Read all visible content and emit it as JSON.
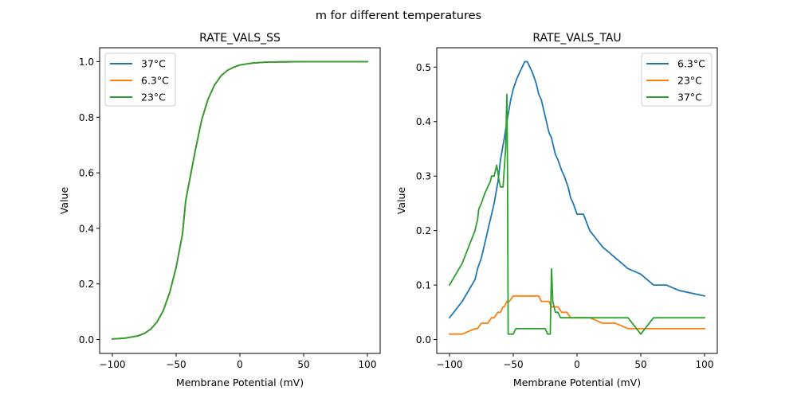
{
  "figure": {
    "suptitle": "m for different temperatures"
  },
  "chart_data": [
    {
      "type": "line",
      "title": "RATE_VALS_SS",
      "xlabel": "Membrane Potential (mV)",
      "ylabel": "Value",
      "xlim": [
        -110,
        110
      ],
      "ylim": [
        -0.05,
        1.05
      ],
      "xticks": [
        -100,
        -50,
        0,
        50,
        100
      ],
      "xtick_labels": [
        "−100",
        "−50",
        "0",
        "50",
        "100"
      ],
      "yticks": [
        0.0,
        0.2,
        0.4,
        0.6,
        0.8,
        1.0
      ],
      "ytick_labels": [
        "0.0",
        "0.2",
        "0.4",
        "0.6",
        "0.8",
        "1.0"
      ],
      "grid": false,
      "legend_position": "top-left",
      "series": [
        {
          "name": "37°C",
          "color": "#1f77b4",
          "x": [
            -100,
            -90,
            -80,
            -75,
            -70,
            -65,
            -60,
            -55,
            -50,
            -45,
            -42.5,
            -40,
            -35,
            -30,
            -25,
            -20,
            -15,
            -10,
            -5,
            0,
            10,
            20,
            30,
            50,
            75,
            100
          ],
          "y": [
            0.002,
            0.005,
            0.013,
            0.022,
            0.037,
            0.063,
            0.105,
            0.17,
            0.26,
            0.38,
            0.5,
            0.56,
            0.68,
            0.79,
            0.865,
            0.915,
            0.948,
            0.968,
            0.98,
            0.988,
            0.995,
            0.998,
            0.999,
            1.0,
            1.0,
            1.0
          ]
        },
        {
          "name": "6.3°C",
          "color": "#ff7f0e",
          "x": [
            -100,
            -90,
            -80,
            -75,
            -70,
            -65,
            -60,
            -55,
            -50,
            -45,
            -42.5,
            -40,
            -35,
            -30,
            -25,
            -20,
            -15,
            -10,
            -5,
            0,
            10,
            20,
            30,
            50,
            75,
            100
          ],
          "y": [
            0.002,
            0.005,
            0.013,
            0.022,
            0.037,
            0.063,
            0.105,
            0.17,
            0.26,
            0.38,
            0.5,
            0.56,
            0.68,
            0.79,
            0.865,
            0.915,
            0.948,
            0.968,
            0.98,
            0.988,
            0.995,
            0.998,
            0.999,
            1.0,
            1.0,
            1.0
          ]
        },
        {
          "name": "23°C",
          "color": "#2ca02c",
          "x": [
            -100,
            -90,
            -80,
            -75,
            -70,
            -65,
            -60,
            -55,
            -50,
            -45,
            -42.5,
            -40,
            -35,
            -30,
            -25,
            -20,
            -15,
            -10,
            -5,
            0,
            10,
            20,
            30,
            50,
            75,
            100
          ],
          "y": [
            0.002,
            0.005,
            0.013,
            0.022,
            0.037,
            0.063,
            0.105,
            0.17,
            0.26,
            0.38,
            0.5,
            0.56,
            0.68,
            0.79,
            0.865,
            0.915,
            0.948,
            0.968,
            0.98,
            0.988,
            0.995,
            0.998,
            0.999,
            1.0,
            1.0,
            1.0
          ]
        }
      ]
    },
    {
      "type": "line",
      "title": "RATE_VALS_TAU",
      "xlabel": "Membrane Potential (mV)",
      "ylabel": "Value",
      "xlim": [
        -110,
        110
      ],
      "ylim": [
        -0.0255,
        0.5355
      ],
      "xticks": [
        -100,
        -50,
        0,
        50,
        100
      ],
      "xtick_labels": [
        "−100",
        "−50",
        "0",
        "50",
        "100"
      ],
      "yticks": [
        0.0,
        0.1,
        0.2,
        0.3,
        0.4,
        0.5
      ],
      "ytick_labels": [
        "0.0",
        "0.1",
        "0.2",
        "0.3",
        "0.4",
        "0.5"
      ],
      "grid": false,
      "legend_position": "top-right",
      "series": [
        {
          "name": "6.3°C",
          "color": "#1f77b4",
          "x": [
            -100,
            -90,
            -85,
            -80,
            -78,
            -75,
            -70,
            -68,
            -65,
            -62,
            -60,
            -57,
            -55,
            -52,
            -50,
            -47,
            -45,
            -41,
            -39,
            -35,
            -32,
            -30,
            -28,
            -25,
            -22,
            -20,
            -17,
            -15,
            -12,
            -10,
            -7,
            -5,
            -3,
            0,
            5,
            10,
            20,
            30,
            40,
            45,
            50,
            60,
            70,
            80,
            100
          ],
          "y": [
            0.04,
            0.07,
            0.09,
            0.11,
            0.13,
            0.15,
            0.2,
            0.22,
            0.25,
            0.29,
            0.33,
            0.37,
            0.4,
            0.44,
            0.46,
            0.48,
            0.49,
            0.51,
            0.51,
            0.49,
            0.47,
            0.45,
            0.44,
            0.41,
            0.38,
            0.37,
            0.34,
            0.33,
            0.31,
            0.3,
            0.28,
            0.26,
            0.25,
            0.23,
            0.23,
            0.2,
            0.17,
            0.15,
            0.13,
            0.125,
            0.12,
            0.1,
            0.1,
            0.09,
            0.08
          ]
        },
        {
          "name": "23°C",
          "color": "#ff7f0e",
          "x": [
            -100,
            -90,
            -85,
            -80,
            -78,
            -75,
            -72,
            -70,
            -67,
            -65,
            -62,
            -60,
            -58,
            -57,
            -55,
            -53,
            -50,
            -48,
            -45,
            -40,
            -35,
            -30,
            -28,
            -25,
            -22,
            -20,
            -17,
            -15,
            -12,
            -10,
            -8,
            -5,
            0,
            5,
            10,
            15,
            20,
            25,
            30,
            35,
            40,
            45,
            50,
            100
          ],
          "y": [
            0.01,
            0.01,
            0.015,
            0.02,
            0.02,
            0.03,
            0.03,
            0.03,
            0.04,
            0.04,
            0.05,
            0.05,
            0.06,
            0.06,
            0.07,
            0.07,
            0.08,
            0.08,
            0.08,
            0.08,
            0.08,
            0.08,
            0.07,
            0.07,
            0.07,
            0.06,
            0.06,
            0.06,
            0.05,
            0.05,
            0.05,
            0.04,
            0.04,
            0.04,
            0.04,
            0.035,
            0.03,
            0.03,
            0.03,
            0.025,
            0.02,
            0.02,
            0.02,
            0.02
          ]
        },
        {
          "name": "37°C",
          "color": "#2ca02c",
          "x": [
            -100,
            -90,
            -85,
            -80,
            -78,
            -77,
            -75,
            -72,
            -70,
            -68,
            -67,
            -65,
            -63,
            -61,
            -60,
            -58,
            -56,
            -55,
            -54.5,
            -54,
            -52,
            -50,
            -48,
            -40,
            -30,
            -25,
            -23,
            -21,
            -20,
            -19,
            -17,
            -15,
            -13,
            -10,
            -5,
            0,
            10,
            20,
            30,
            40,
            50,
            60,
            70,
            80,
            100
          ],
          "y": [
            0.1,
            0.14,
            0.17,
            0.2,
            0.22,
            0.24,
            0.25,
            0.27,
            0.28,
            0.29,
            0.3,
            0.3,
            0.32,
            0.29,
            0.28,
            0.28,
            0.35,
            0.45,
            0.3,
            0.01,
            0.01,
            0.01,
            0.02,
            0.02,
            0.02,
            0.02,
            0.01,
            0.01,
            0.13,
            0.07,
            0.05,
            0.05,
            0.04,
            0.04,
            0.04,
            0.04,
            0.04,
            0.04,
            0.04,
            0.04,
            0.01,
            0.04,
            0.04,
            0.04,
            0.04
          ]
        }
      ]
    }
  ]
}
